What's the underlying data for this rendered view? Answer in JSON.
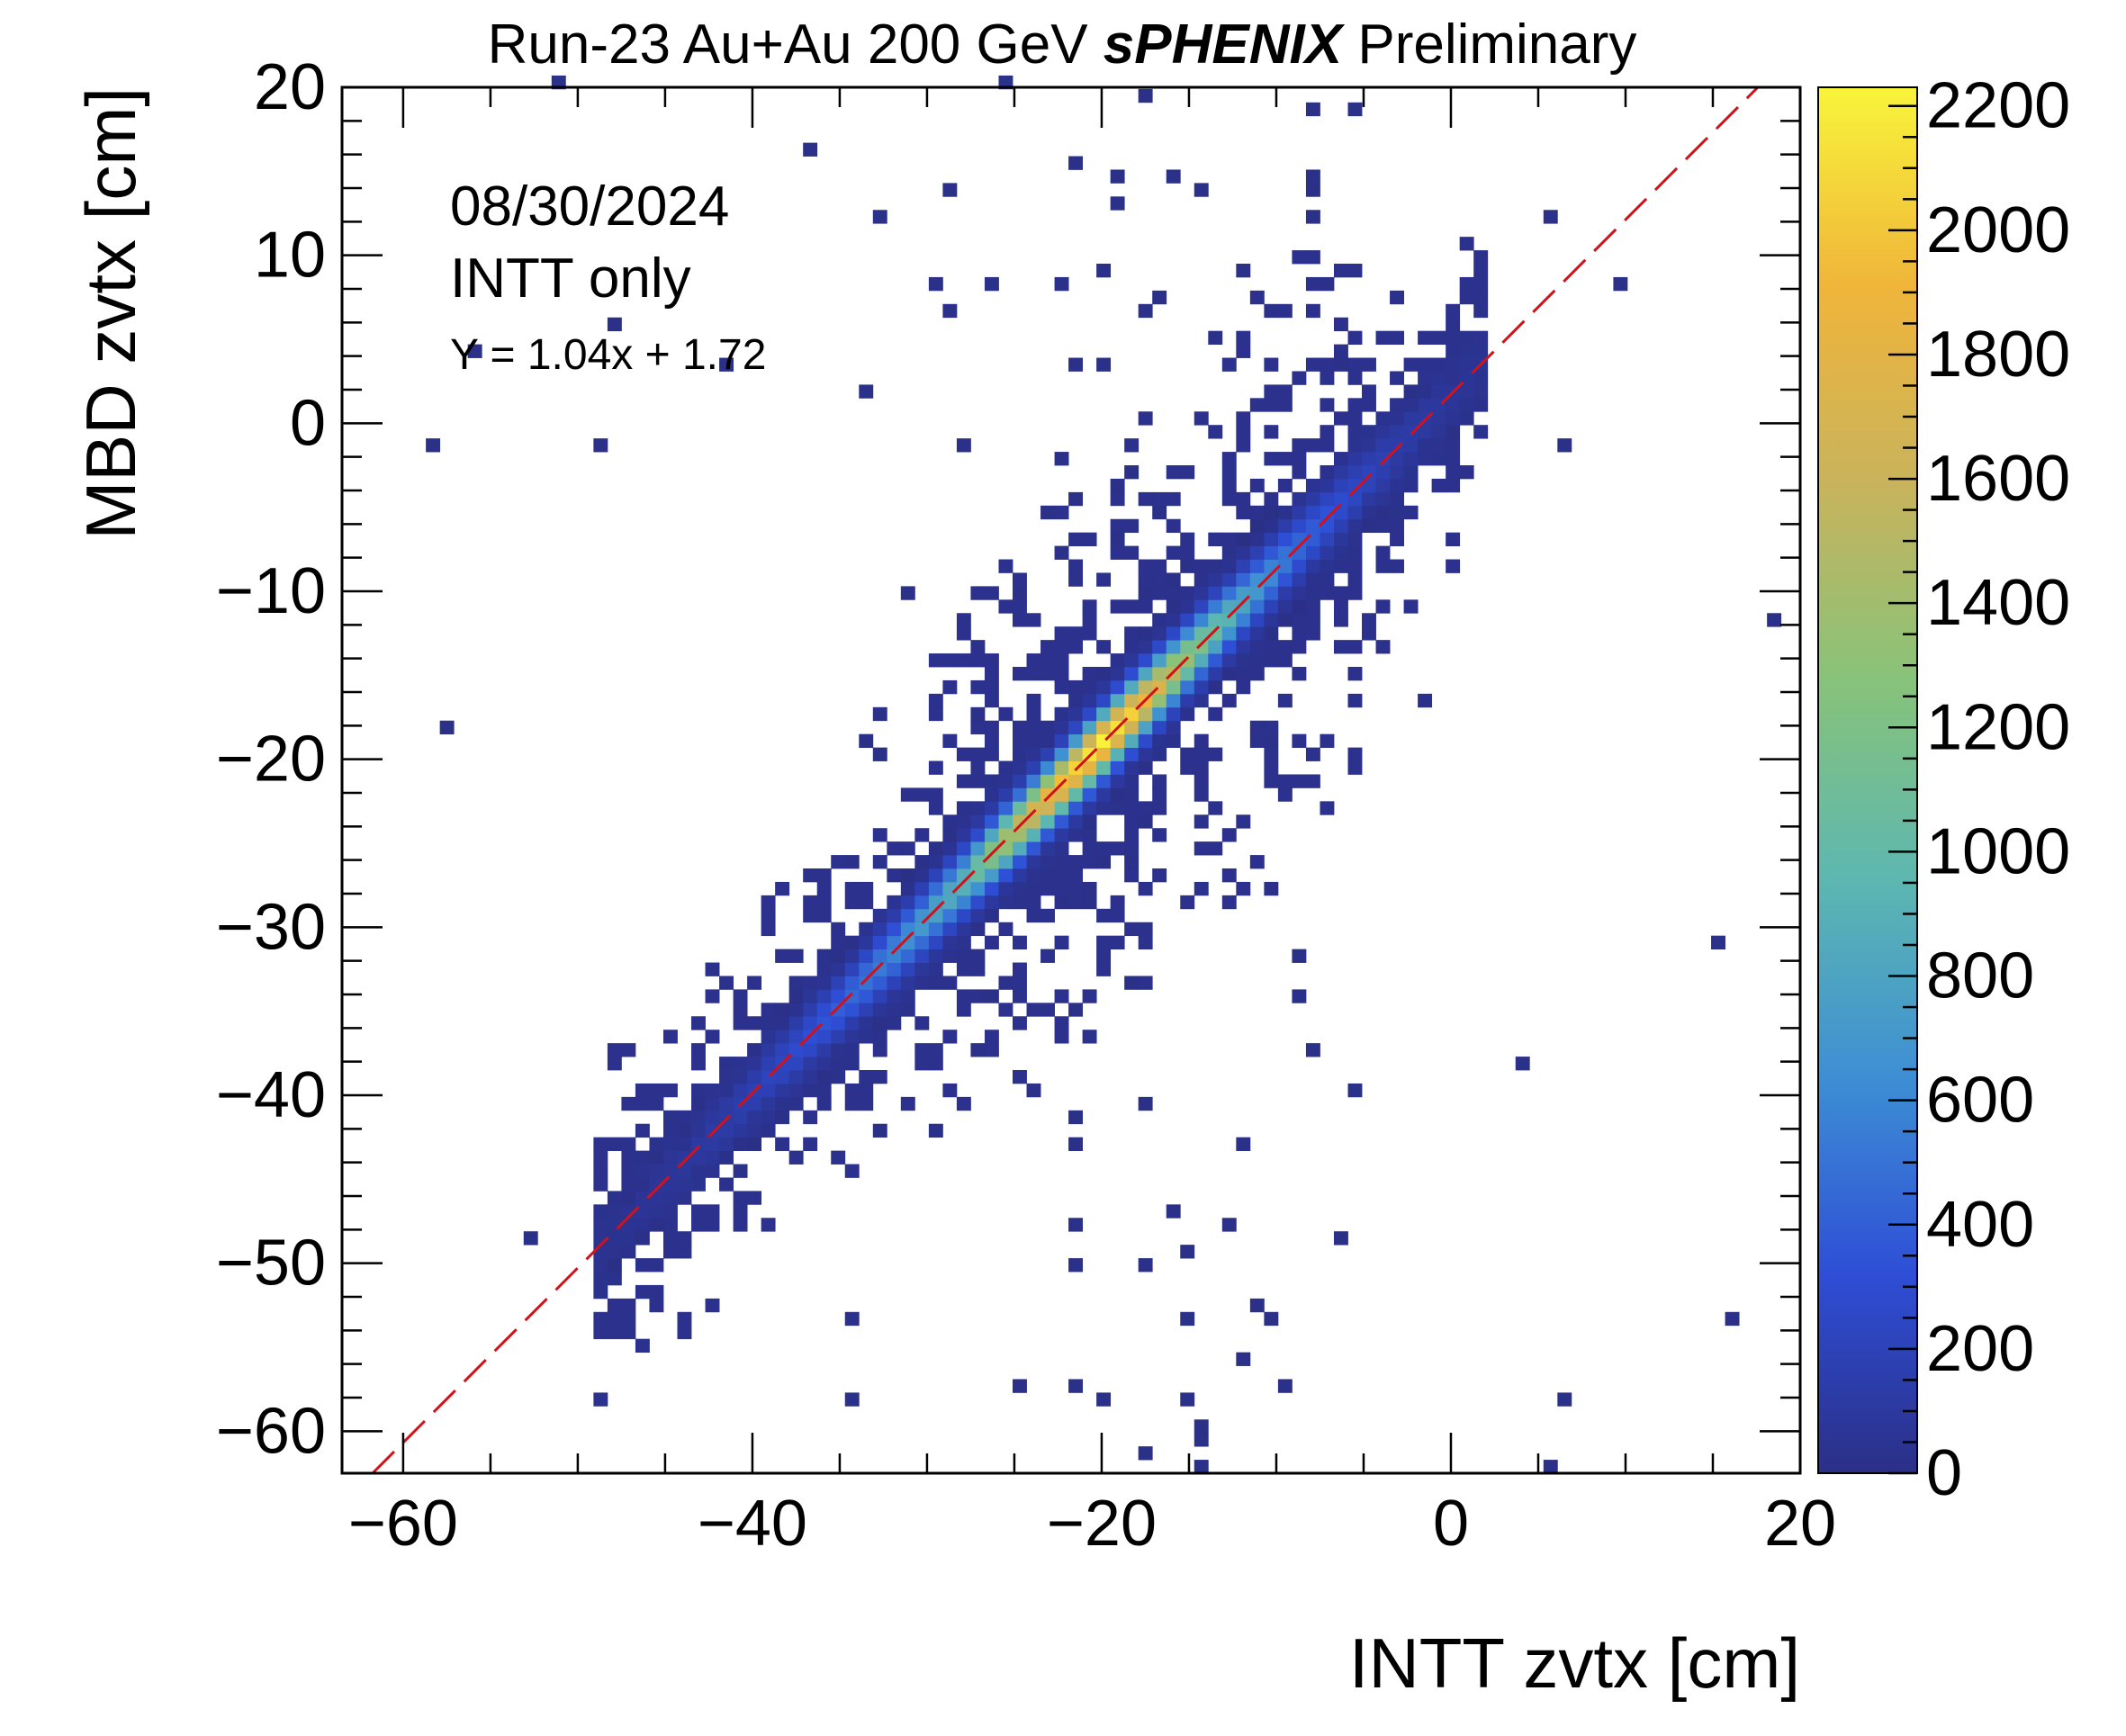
{
  "header": {
    "title_prefix": "Run-23 Au+Au 200 GeV ",
    "title_experiment": "sPHENIX",
    "title_suffix": " Preliminary"
  },
  "annotations": {
    "date": "08/30/2024",
    "mode": "INTT only",
    "fit": "Y = 1.04x + 1.72"
  },
  "colors": {
    "fit_line": "#d0121b",
    "palette": [
      "#2b2f86",
      "#2e4ed6",
      "#3d8fd4",
      "#5db7b0",
      "#87c37a",
      "#c9b35c",
      "#f0b53a",
      "#f8f43a"
    ]
  },
  "chart_data": {
    "type": "heatmap",
    "xlabel": "INTT zvtx [cm]",
    "ylabel": "MBD zvtx [cm]",
    "xlim": [
      -63.5,
      20
    ],
    "ylim": [
      -62.5,
      20
    ],
    "xticks": [
      -60,
      -40,
      -20,
      0,
      20
    ],
    "xtick_labels": [
      "−60",
      "−40",
      "−20",
      "0",
      "20"
    ],
    "yticks": [
      -60,
      -50,
      -40,
      -30,
      -20,
      -10,
      0,
      10,
      20
    ],
    "ytick_labels": [
      "−60",
      "−50",
      "−40",
      "−30",
      "−20",
      "−10",
      "0",
      "10",
      "20"
    ],
    "zlim": [
      0,
      2230
    ],
    "zticks": [
      0,
      200,
      400,
      600,
      800,
      1000,
      1200,
      1400,
      1600,
      1800,
      2000,
      2200
    ],
    "ztick_labels": [
      "0",
      "200",
      "400",
      "600",
      "800",
      "1000",
      "1200",
      "1400",
      "1600",
      "1800",
      "2000",
      "2200"
    ],
    "fit": {
      "slope": 1.04,
      "intercept": 1.72,
      "style": "dashed"
    },
    "correlation_band": {
      "x_range": [
        -49,
        2
      ],
      "peak_count_at_x": [
        [
          -48,
          20
        ],
        [
          -44,
          60
        ],
        [
          -40,
          150
        ],
        [
          -36,
          320
        ],
        [
          -32,
          560
        ],
        [
          -28,
          900
        ],
        [
          -25,
          1500
        ],
        [
          -22,
          2000
        ],
        [
          -20,
          2200
        ],
        [
          -18,
          2000
        ],
        [
          -15,
          1300
        ],
        [
          -12,
          800
        ],
        [
          -9,
          450
        ],
        [
          -6,
          250
        ],
        [
          -3,
          120
        ],
        [
          0,
          50
        ],
        [
          2,
          20
        ]
      ],
      "core_halfwidth_cm": 1.2,
      "halo_halfwidth_cm": 5
    },
    "outlier_sparse_region": {
      "x_range": [
        -35,
        -5
      ],
      "y_range": [
        -60,
        20
      ]
    },
    "grid": false,
    "legend": "none"
  }
}
